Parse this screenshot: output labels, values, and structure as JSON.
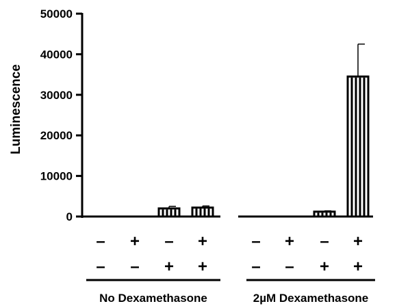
{
  "chart_data": {
    "type": "bar",
    "ylabel": "Luminescence",
    "ylim": [
      0,
      50000
    ],
    "yticks": [
      "0",
      "10000",
      "20000",
      "30000",
      "40000",
      "50000"
    ],
    "grid": false,
    "bar_color": "#000000",
    "bars": [
      {
        "group": "No Dexamethasone",
        "row1": "-",
        "row2": "-",
        "value": 0,
        "error": 0
      },
      {
        "group": "No Dexamethasone",
        "row1": "+",
        "row2": "-",
        "value": 0,
        "error": 0
      },
      {
        "group": "No Dexamethasone",
        "row1": "-",
        "row2": "+",
        "value": 2000,
        "error": 500
      },
      {
        "group": "No Dexamethasone",
        "row1": "+",
        "row2": "+",
        "value": 2200,
        "error": 400
      },
      {
        "group": "2µM Dexamethasone",
        "row1": "-",
        "row2": "-",
        "value": 0,
        "error": 0
      },
      {
        "group": "2µM Dexamethasone",
        "row1": "+",
        "row2": "-",
        "value": 0,
        "error": 0
      },
      {
        "group": "2µM Dexamethasone",
        "row1": "-",
        "row2": "+",
        "value": 1200,
        "error": 200
      },
      {
        "group": "2µM Dexamethasone",
        "row1": "+",
        "row2": "+",
        "value": 34500,
        "error": 8000
      }
    ],
    "groups": [
      "No Dexamethasone",
      "2µM Dexamethasone"
    ]
  }
}
